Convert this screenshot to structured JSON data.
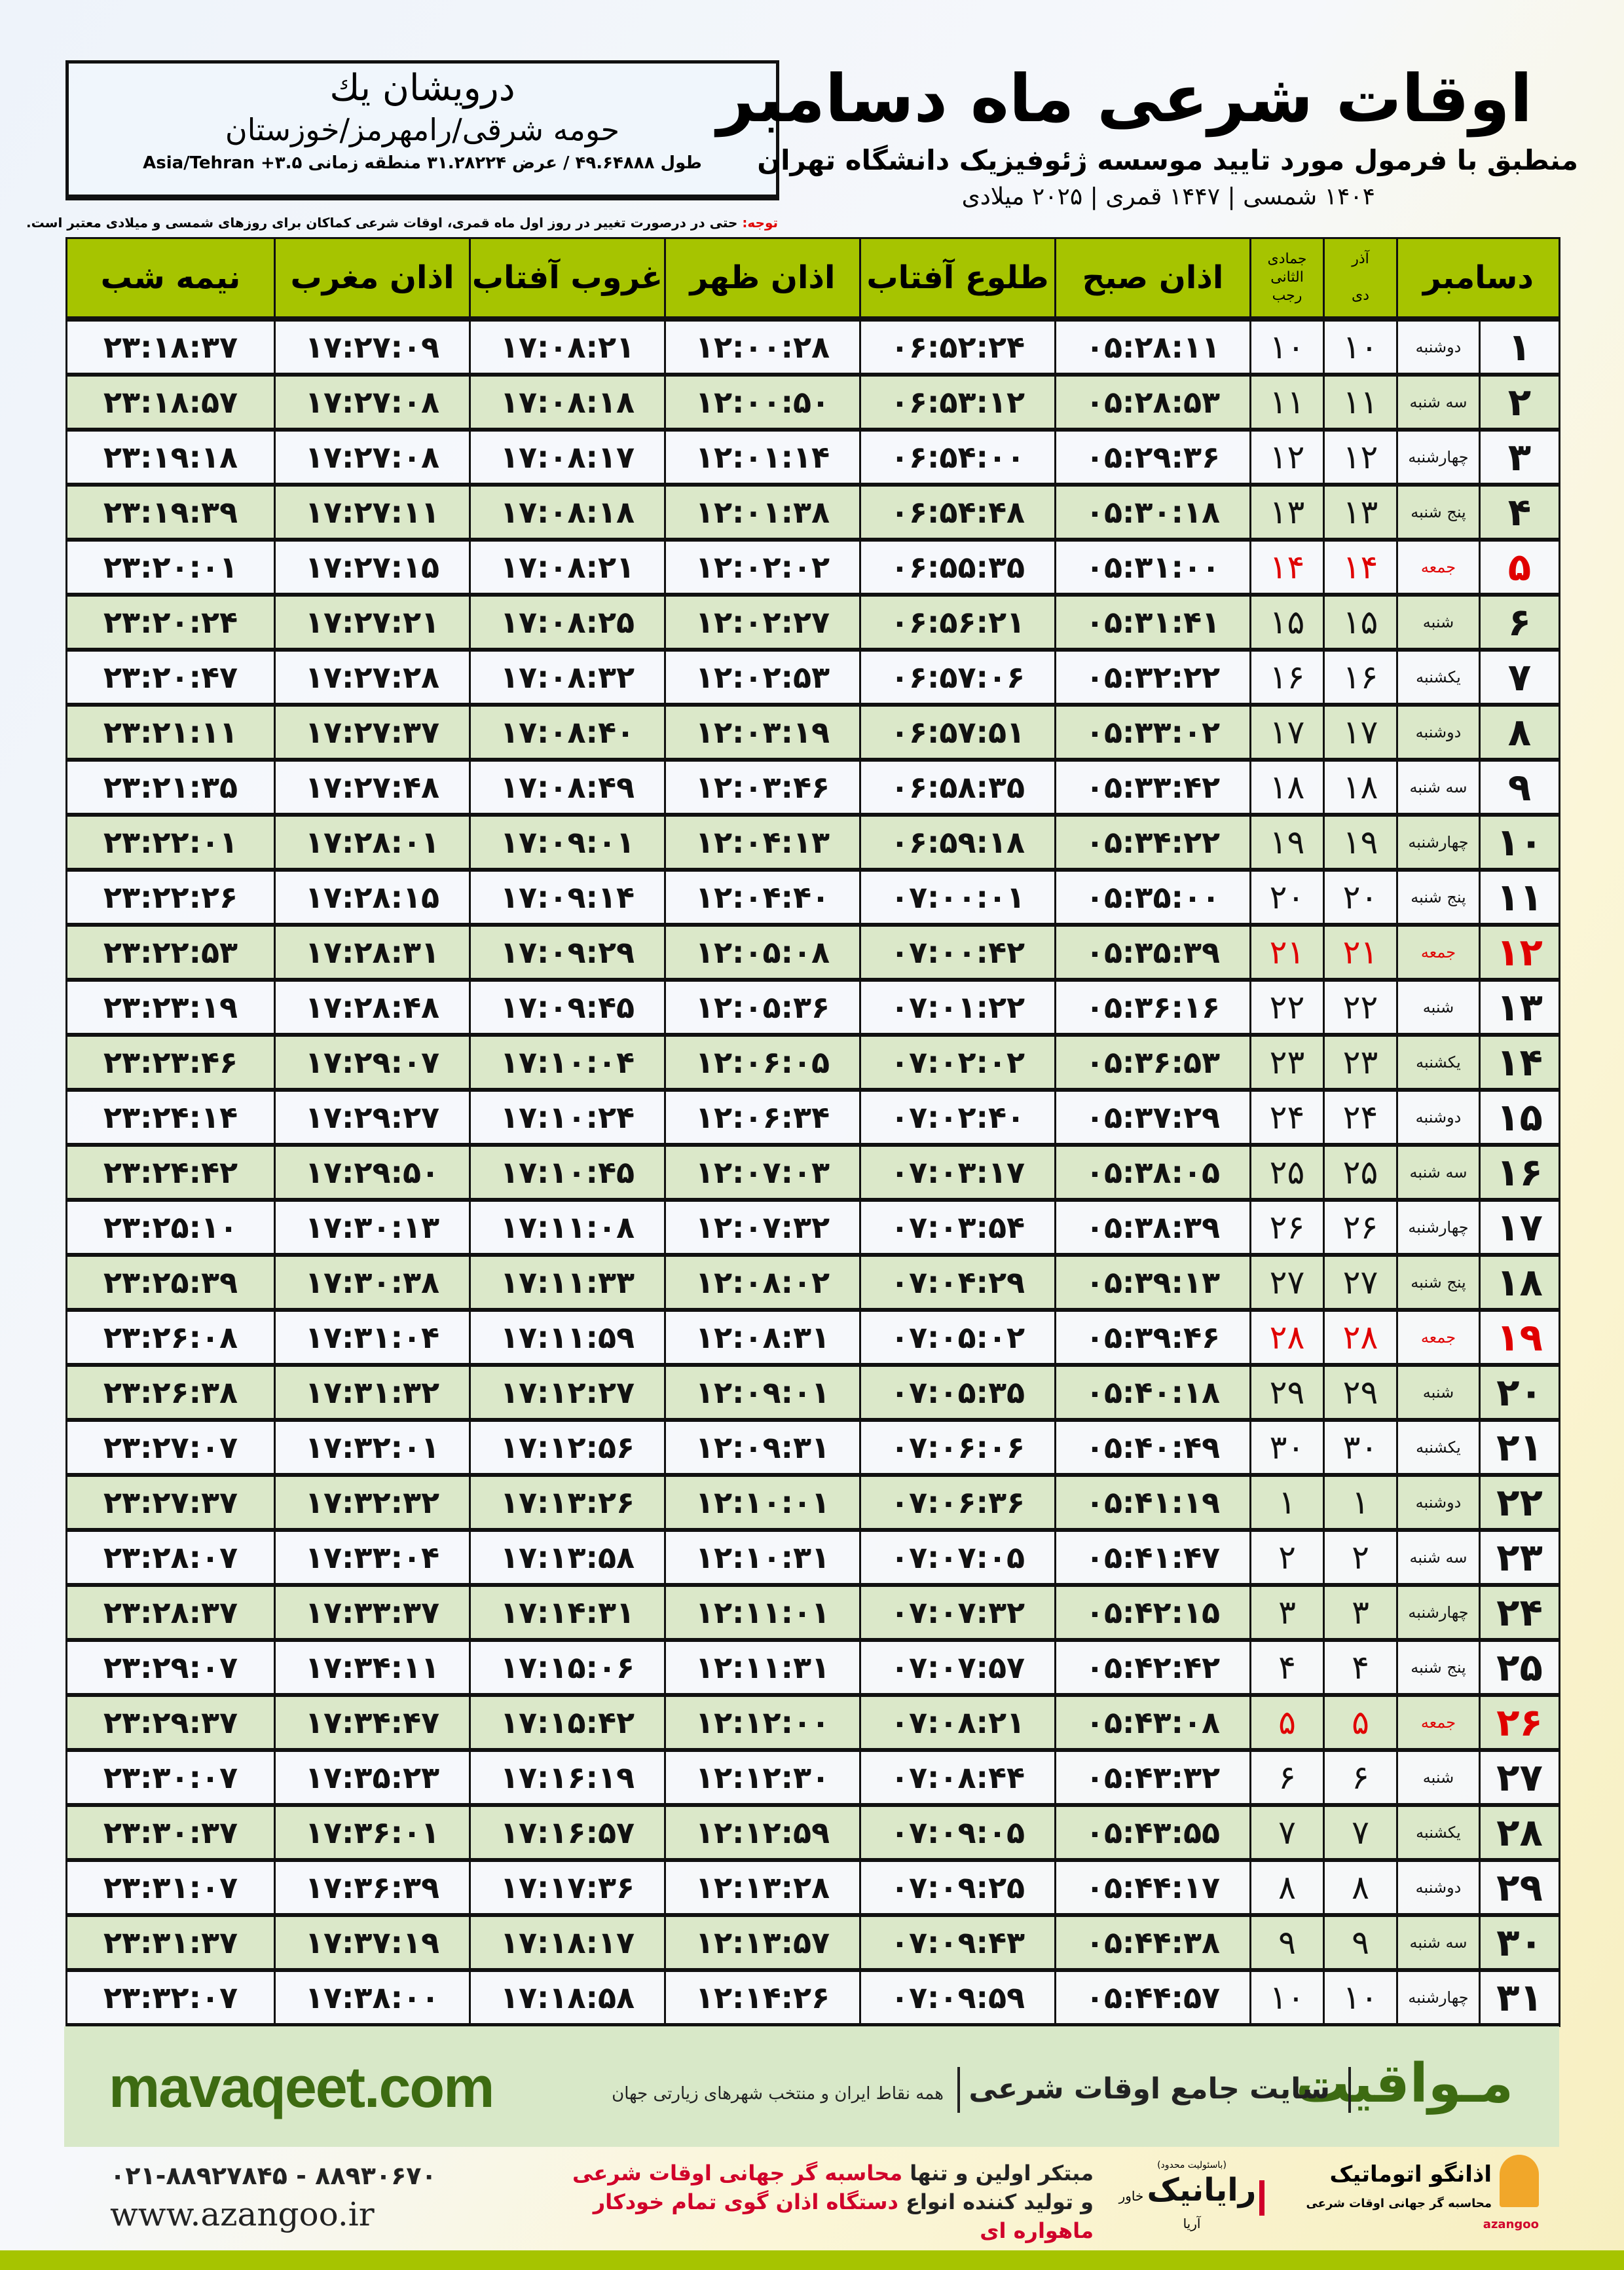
{
  "location": {
    "name": "درویشان یك",
    "region": "حومه شرقی/رامهرمز/خوزستان",
    "coords": "طول ۴۹.۶۴۸۸۸ / عرض ۳۱.۲۸۲۲۴ منطقه زمانی ۳.۵+ Asia/Tehran"
  },
  "header": {
    "title": "اوقات شرعی ماه دسامبر",
    "subtitle": "منطبق با فرمول مورد تایید موسسه ژئوفیزیک دانشگاه تهران",
    "dates": "۱۴۰۴ شمسی | ۱۴۴۷ قمری | ۲۰۲۵ میلادی"
  },
  "note": {
    "label": "توجه:",
    "text": " حتی در درصورت تغییر در روز اول ماه قمری، اوقات شرعی کماکان برای روزهای شمسی و میلادی معتبر است."
  },
  "table": {
    "headers": {
      "month": "دسامبر",
      "shamsi_months": "آذر",
      "shamsi_month2": "دی",
      "qamari_months": "جمادی الثانی",
      "qamari_month2": "رجب",
      "sobh": "اذان صبح",
      "tolu": "طلوع آفتاب",
      "zohr": "اذان ظهر",
      "ghorub": "غروب آفتاب",
      "maghrib": "اذان مغرب",
      "nimeshab": "نیمه شب"
    },
    "rows": [
      {
        "day": "۱",
        "weekday": "دوشنبه",
        "shamsi": "۱۰",
        "qamari": "۱۰",
        "sobh": "۰۵:۲۸:۱۱",
        "tolu": "۰۶:۵۲:۲۴",
        "zohr": "۱۲:۰۰:۲۸",
        "ghorub": "۱۷:۰۸:۲۱",
        "maghrib": "۱۷:۲۷:۰۹",
        "nimeshab": "۲۳:۱۸:۳۷",
        "holiday": false
      },
      {
        "day": "۲",
        "weekday": "سه شنبه",
        "shamsi": "۱۱",
        "qamari": "۱۱",
        "sobh": "۰۵:۲۸:۵۳",
        "tolu": "۰۶:۵۳:۱۲",
        "zohr": "۱۲:۰۰:۵۰",
        "ghorub": "۱۷:۰۸:۱۸",
        "maghrib": "۱۷:۲۷:۰۸",
        "nimeshab": "۲۳:۱۸:۵۷",
        "holiday": false
      },
      {
        "day": "۳",
        "weekday": "چهارشنبه",
        "shamsi": "۱۲",
        "qamari": "۱۲",
        "sobh": "۰۵:۲۹:۳۶",
        "tolu": "۰۶:۵۴:۰۰",
        "zohr": "۱۲:۰۱:۱۴",
        "ghorub": "۱۷:۰۸:۱۷",
        "maghrib": "۱۷:۲۷:۰۸",
        "nimeshab": "۲۳:۱۹:۱۸",
        "holiday": false
      },
      {
        "day": "۴",
        "weekday": "پنج شنبه",
        "shamsi": "۱۳",
        "qamari": "۱۳",
        "sobh": "۰۵:۳۰:۱۸",
        "tolu": "۰۶:۵۴:۴۸",
        "zohr": "۱۲:۰۱:۳۸",
        "ghorub": "۱۷:۰۸:۱۸",
        "maghrib": "۱۷:۲۷:۱۱",
        "nimeshab": "۲۳:۱۹:۳۹",
        "holiday": false
      },
      {
        "day": "۵",
        "weekday": "جمعه",
        "shamsi": "۱۴",
        "qamari": "۱۴",
        "sobh": "۰۵:۳۱:۰۰",
        "tolu": "۰۶:۵۵:۳۵",
        "zohr": "۱۲:۰۲:۰۲",
        "ghorub": "۱۷:۰۸:۲۱",
        "maghrib": "۱۷:۲۷:۱۵",
        "nimeshab": "۲۳:۲۰:۰۱",
        "holiday": true
      },
      {
        "day": "۶",
        "weekday": "شنبه",
        "shamsi": "۱۵",
        "qamari": "۱۵",
        "sobh": "۰۵:۳۱:۴۱",
        "tolu": "۰۶:۵۶:۲۱",
        "zohr": "۱۲:۰۲:۲۷",
        "ghorub": "۱۷:۰۸:۲۵",
        "maghrib": "۱۷:۲۷:۲۱",
        "nimeshab": "۲۳:۲۰:۲۴",
        "holiday": false
      },
      {
        "day": "۷",
        "weekday": "یکشنبه",
        "shamsi": "۱۶",
        "qamari": "۱۶",
        "sobh": "۰۵:۳۲:۲۲",
        "tolu": "۰۶:۵۷:۰۶",
        "zohr": "۱۲:۰۲:۵۳",
        "ghorub": "۱۷:۰۸:۳۲",
        "maghrib": "۱۷:۲۷:۲۸",
        "nimeshab": "۲۳:۲۰:۴۷",
        "holiday": false
      },
      {
        "day": "۸",
        "weekday": "دوشنبه",
        "shamsi": "۱۷",
        "qamari": "۱۷",
        "sobh": "۰۵:۳۳:۰۲",
        "tolu": "۰۶:۵۷:۵۱",
        "zohr": "۱۲:۰۳:۱۹",
        "ghorub": "۱۷:۰۸:۴۰",
        "maghrib": "۱۷:۲۷:۳۷",
        "nimeshab": "۲۳:۲۱:۱۱",
        "holiday": false
      },
      {
        "day": "۹",
        "weekday": "سه شنبه",
        "shamsi": "۱۸",
        "qamari": "۱۸",
        "sobh": "۰۵:۳۳:۴۲",
        "tolu": "۰۶:۵۸:۳۵",
        "zohr": "۱۲:۰۳:۴۶",
        "ghorub": "۱۷:۰۸:۴۹",
        "maghrib": "۱۷:۲۷:۴۸",
        "nimeshab": "۲۳:۲۱:۳۵",
        "holiday": false
      },
      {
        "day": "۱۰",
        "weekday": "چهارشنبه",
        "shamsi": "۱۹",
        "qamari": "۱۹",
        "sobh": "۰۵:۳۴:۲۲",
        "tolu": "۰۶:۵۹:۱۸",
        "zohr": "۱۲:۰۴:۱۳",
        "ghorub": "۱۷:۰۹:۰۱",
        "maghrib": "۱۷:۲۸:۰۱",
        "nimeshab": "۲۳:۲۲:۰۱",
        "holiday": false
      },
      {
        "day": "۱۱",
        "weekday": "پنج شنبه",
        "shamsi": "۲۰",
        "qamari": "۲۰",
        "sobh": "۰۵:۳۵:۰۰",
        "tolu": "۰۷:۰۰:۰۱",
        "zohr": "۱۲:۰۴:۴۰",
        "ghorub": "۱۷:۰۹:۱۴",
        "maghrib": "۱۷:۲۸:۱۵",
        "nimeshab": "۲۳:۲۲:۲۶",
        "holiday": false
      },
      {
        "day": "۱۲",
        "weekday": "جمعه",
        "shamsi": "۲۱",
        "qamari": "۲۱",
        "sobh": "۰۵:۳۵:۳۹",
        "tolu": "۰۷:۰۰:۴۲",
        "zohr": "۱۲:۰۵:۰۸",
        "ghorub": "۱۷:۰۹:۲۹",
        "maghrib": "۱۷:۲۸:۳۱",
        "nimeshab": "۲۳:۲۲:۵۳",
        "holiday": true
      },
      {
        "day": "۱۳",
        "weekday": "شنبه",
        "shamsi": "۲۲",
        "qamari": "۲۲",
        "sobh": "۰۵:۳۶:۱۶",
        "tolu": "۰۷:۰۱:۲۲",
        "zohr": "۱۲:۰۵:۳۶",
        "ghorub": "۱۷:۰۹:۴۵",
        "maghrib": "۱۷:۲۸:۴۸",
        "nimeshab": "۲۳:۲۳:۱۹",
        "holiday": false
      },
      {
        "day": "۱۴",
        "weekday": "یکشنبه",
        "shamsi": "۲۳",
        "qamari": "۲۳",
        "sobh": "۰۵:۳۶:۵۳",
        "tolu": "۰۷:۰۲:۰۲",
        "zohr": "۱۲:۰۶:۰۵",
        "ghorub": "۱۷:۱۰:۰۴",
        "maghrib": "۱۷:۲۹:۰۷",
        "nimeshab": "۲۳:۲۳:۴۶",
        "holiday": false
      },
      {
        "day": "۱۵",
        "weekday": "دوشنبه",
        "shamsi": "۲۴",
        "qamari": "۲۴",
        "sobh": "۰۵:۳۷:۲۹",
        "tolu": "۰۷:۰۲:۴۰",
        "zohr": "۱۲:۰۶:۳۴",
        "ghorub": "۱۷:۱۰:۲۴",
        "maghrib": "۱۷:۲۹:۲۷",
        "nimeshab": "۲۳:۲۴:۱۴",
        "holiday": false
      },
      {
        "day": "۱۶",
        "weekday": "سه شنبه",
        "shamsi": "۲۵",
        "qamari": "۲۵",
        "sobh": "۰۵:۳۸:۰۵",
        "tolu": "۰۷:۰۳:۱۷",
        "zohr": "۱۲:۰۷:۰۳",
        "ghorub": "۱۷:۱۰:۴۵",
        "maghrib": "۱۷:۲۹:۵۰",
        "nimeshab": "۲۳:۲۴:۴۲",
        "holiday": false
      },
      {
        "day": "۱۷",
        "weekday": "چهارشنبه",
        "shamsi": "۲۶",
        "qamari": "۲۶",
        "sobh": "۰۵:۳۸:۳۹",
        "tolu": "۰۷:۰۳:۵۴",
        "zohr": "۱۲:۰۷:۳۲",
        "ghorub": "۱۷:۱۱:۰۸",
        "maghrib": "۱۷:۳۰:۱۳",
        "nimeshab": "۲۳:۲۵:۱۰",
        "holiday": false
      },
      {
        "day": "۱۸",
        "weekday": "پنج شنبه",
        "shamsi": "۲۷",
        "qamari": "۲۷",
        "sobh": "۰۵:۳۹:۱۳",
        "tolu": "۰۷:۰۴:۲۹",
        "zohr": "۱۲:۰۸:۰۲",
        "ghorub": "۱۷:۱۱:۳۳",
        "maghrib": "۱۷:۳۰:۳۸",
        "nimeshab": "۲۳:۲۵:۳۹",
        "holiday": false
      },
      {
        "day": "۱۹",
        "weekday": "جمعه",
        "shamsi": "۲۸",
        "qamari": "۲۸",
        "sobh": "۰۵:۳۹:۴۶",
        "tolu": "۰۷:۰۵:۰۲",
        "zohr": "۱۲:۰۸:۳۱",
        "ghorub": "۱۷:۱۱:۵۹",
        "maghrib": "۱۷:۳۱:۰۴",
        "nimeshab": "۲۳:۲۶:۰۸",
        "holiday": true
      },
      {
        "day": "۲۰",
        "weekday": "شنبه",
        "shamsi": "۲۹",
        "qamari": "۲۹",
        "sobh": "۰۵:۴۰:۱۸",
        "tolu": "۰۷:۰۵:۳۵",
        "zohr": "۱۲:۰۹:۰۱",
        "ghorub": "۱۷:۱۲:۲۷",
        "maghrib": "۱۷:۳۱:۳۲",
        "nimeshab": "۲۳:۲۶:۳۸",
        "holiday": false
      },
      {
        "day": "۲۱",
        "weekday": "یکشنبه",
        "shamsi": "۳۰",
        "qamari": "۳۰",
        "sobh": "۰۵:۴۰:۴۹",
        "tolu": "۰۷:۰۶:۰۶",
        "zohr": "۱۲:۰۹:۳۱",
        "ghorub": "۱۷:۱۲:۵۶",
        "maghrib": "۱۷:۳۲:۰۱",
        "nimeshab": "۲۳:۲۷:۰۷",
        "holiday": false
      },
      {
        "day": "۲۲",
        "weekday": "دوشنبه",
        "shamsi": "۱",
        "qamari": "۱",
        "sobh": "۰۵:۴۱:۱۹",
        "tolu": "۰۷:۰۶:۳۶",
        "zohr": "۱۲:۱۰:۰۱",
        "ghorub": "۱۷:۱۳:۲۶",
        "maghrib": "۱۷:۳۲:۳۲",
        "nimeshab": "۲۳:۲۷:۳۷",
        "holiday": false
      },
      {
        "day": "۲۳",
        "weekday": "سه شنبه",
        "shamsi": "۲",
        "qamari": "۲",
        "sobh": "۰۵:۴۱:۴۷",
        "tolu": "۰۷:۰۷:۰۵",
        "zohr": "۱۲:۱۰:۳۱",
        "ghorub": "۱۷:۱۳:۵۸",
        "maghrib": "۱۷:۳۳:۰۴",
        "nimeshab": "۲۳:۲۸:۰۷",
        "holiday": false
      },
      {
        "day": "۲۴",
        "weekday": "چهارشنبه",
        "shamsi": "۳",
        "qamari": "۳",
        "sobh": "۰۵:۴۲:۱۵",
        "tolu": "۰۷:۰۷:۳۲",
        "zohr": "۱۲:۱۱:۰۱",
        "ghorub": "۱۷:۱۴:۳۱",
        "maghrib": "۱۷:۳۳:۳۷",
        "nimeshab": "۲۳:۲۸:۳۷",
        "holiday": false
      },
      {
        "day": "۲۵",
        "weekday": "پنج شنبه",
        "shamsi": "۴",
        "qamari": "۴",
        "sobh": "۰۵:۴۲:۴۲",
        "tolu": "۰۷:۰۷:۵۷",
        "zohr": "۱۲:۱۱:۳۱",
        "ghorub": "۱۷:۱۵:۰۶",
        "maghrib": "۱۷:۳۴:۱۱",
        "nimeshab": "۲۳:۲۹:۰۷",
        "holiday": false
      },
      {
        "day": "۲۶",
        "weekday": "جمعه",
        "shamsi": "۵",
        "qamari": "۵",
        "sobh": "۰۵:۴۳:۰۸",
        "tolu": "۰۷:۰۸:۲۱",
        "zohr": "۱۲:۱۲:۰۰",
        "ghorub": "۱۷:۱۵:۴۲",
        "maghrib": "۱۷:۳۴:۴۷",
        "nimeshab": "۲۳:۲۹:۳۷",
        "holiday": true
      },
      {
        "day": "۲۷",
        "weekday": "شنبه",
        "shamsi": "۶",
        "qamari": "۶",
        "sobh": "۰۵:۴۳:۳۲",
        "tolu": "۰۷:۰۸:۴۴",
        "zohr": "۱۲:۱۲:۳۰",
        "ghorub": "۱۷:۱۶:۱۹",
        "maghrib": "۱۷:۳۵:۲۳",
        "nimeshab": "۲۳:۳۰:۰۷",
        "holiday": false
      },
      {
        "day": "۲۸",
        "weekday": "یکشنبه",
        "shamsi": "۷",
        "qamari": "۷",
        "sobh": "۰۵:۴۳:۵۵",
        "tolu": "۰۷:۰۹:۰۵",
        "zohr": "۱۲:۱۲:۵۹",
        "ghorub": "۱۷:۱۶:۵۷",
        "maghrib": "۱۷:۳۶:۰۱",
        "nimeshab": "۲۳:۳۰:۳۷",
        "holiday": false
      },
      {
        "day": "۲۹",
        "weekday": "دوشنبه",
        "shamsi": "۸",
        "qamari": "۸",
        "sobh": "۰۵:۴۴:۱۷",
        "tolu": "۰۷:۰۹:۲۵",
        "zohr": "۱۲:۱۳:۲۸",
        "ghorub": "۱۷:۱۷:۳۶",
        "maghrib": "۱۷:۳۶:۳۹",
        "nimeshab": "۲۳:۳۱:۰۷",
        "holiday": false
      },
      {
        "day": "۳۰",
        "weekday": "سه شنبه",
        "shamsi": "۹",
        "qamari": "۹",
        "sobh": "۰۵:۴۴:۳۸",
        "tolu": "۰۷:۰۹:۴۳",
        "zohr": "۱۲:۱۳:۵۷",
        "ghorub": "۱۷:۱۸:۱۷",
        "maghrib": "۱۷:۳۷:۱۹",
        "nimeshab": "۲۳:۳۱:۳۷",
        "holiday": false
      },
      {
        "day": "۳۱",
        "weekday": "چهارشنبه",
        "shamsi": "۱۰",
        "qamari": "۱۰",
        "sobh": "۰۵:۴۴:۵۷",
        "tolu": "۰۷:۰۹:۵۹",
        "zohr": "۱۲:۱۴:۲۶",
        "ghorub": "۱۷:۱۸:۵۸",
        "maghrib": "۱۷:۳۸:۰۰",
        "nimeshab": "۲۳:۳۲:۰۷",
        "holiday": false
      }
    ]
  },
  "banner": {
    "brand": "مـواقیت",
    "slogan": "سایت جامع اوقات شرعی",
    "slogan2": "همه نقاط ایران و منتخب شهرهای زیارتی جهان",
    "site": "mavaqeet.com"
  },
  "footer": {
    "phone": "۰۲۱-۸۸۹۲۷۸۴۵ - ۸۸۹۳۰۶۷۰",
    "web": "www.azangoo.ir",
    "ad_line1_a": "مبتکر اولین و تنها ",
    "ad_line1_b": "محاسبه گر جهانی اوقات شرعی",
    "ad_line2_a": "و تولید کننده انواع ",
    "ad_line2_b": "دستگاه اذان گوی تمام خودکار ماهواره ای",
    "logo1_small": "(باسئولیت محدود)",
    "logo1_name": "رایانیک",
    "logo1_sub": "خاور آریا",
    "logo2_name": "اذانگو اتوماتیک",
    "logo2_sub": "محاسبه گر جهانی اوقات شرعی",
    "logo2_latin": "azangoo"
  },
  "colors": {
    "header_green": "#a6c400",
    "row_stripe": "#dbe8c9",
    "holiday_red": "#e00000",
    "brand_green": "#3d6b12"
  }
}
